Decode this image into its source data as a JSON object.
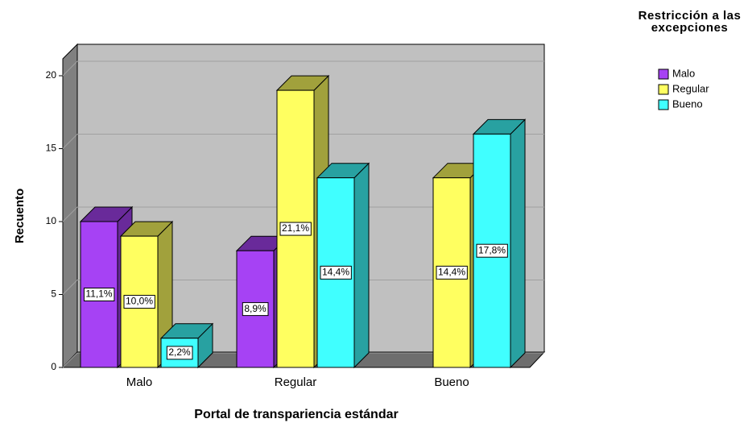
{
  "chart_data": {
    "type": "bar3d",
    "x_label": "Portal de transpariencia estándar",
    "y_label": "Recuento",
    "legend_title": "Restricción a las excepciones",
    "categories": [
      "Malo",
      "Regular",
      "Bueno"
    ],
    "series": [
      {
        "name": "Malo",
        "color": "#a642f4",
        "values": [
          10,
          8,
          null
        ],
        "value_labels": [
          "11,1%",
          "8,9%",
          null
        ]
      },
      {
        "name": "Regular",
        "color": "#ffff60",
        "values": [
          9,
          19,
          13
        ],
        "value_labels": [
          "10,0%",
          "21,1%",
          "14,4%"
        ]
      },
      {
        "name": "Bueno",
        "color": "#40ffff",
        "values": [
          2,
          13,
          16
        ],
        "value_labels": [
          "2,2%",
          "14,4%",
          "17,8%"
        ]
      }
    ],
    "ylim": [
      0,
      20
    ],
    "yticks": [
      0,
      5,
      10,
      15,
      20
    ],
    "grid": true,
    "legend": "right"
  }
}
